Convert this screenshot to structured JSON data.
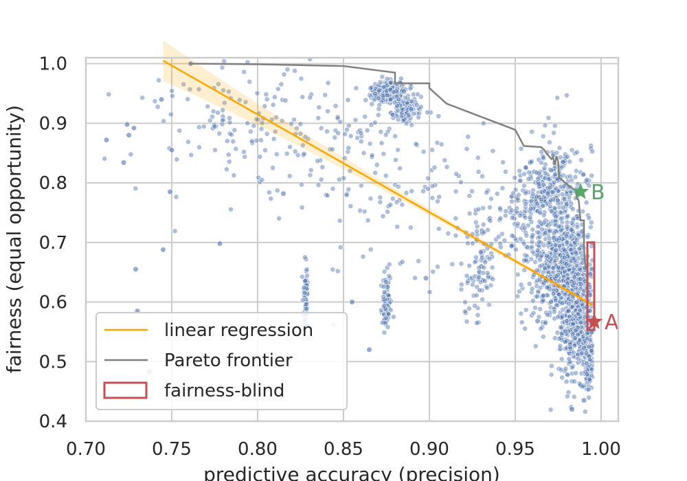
{
  "chart_data": {
    "type": "scatter",
    "title": "",
    "xlabel": "predictive accuracy (precision)",
    "ylabel": "fairness (equal opportunity)",
    "xlim": [
      0.7,
      1.01
    ],
    "ylim": [
      0.4,
      1.01
    ],
    "xticks": [
      "0.70",
      "0.75",
      "0.80",
      "0.85",
      "0.90",
      "0.95",
      "1.00"
    ],
    "yticks": [
      "0.4",
      "0.5",
      "0.6",
      "0.7",
      "0.8",
      "0.9",
      "1.0"
    ],
    "grid": true,
    "legend_position": "lower-left",
    "legend": [
      {
        "label": "linear regression",
        "kind": "line",
        "color": "#ffa500"
      },
      {
        "label": "Pareto frontier",
        "kind": "line",
        "color": "#808080"
      },
      {
        "label": "fairness-blind",
        "kind": "rect",
        "color": "#c44e52"
      }
    ],
    "colors": {
      "scatter": "#4c72b0",
      "regression": "#ffa500",
      "pareto": "#808080",
      "fairness_blind": "#c44e52",
      "point_b": "#55a868",
      "point_a": "#c44e52"
    },
    "regression_line": {
      "x": [
        0.745,
        0.995
      ],
      "y": [
        1.005,
        0.595
      ]
    },
    "pareto_frontier": {
      "x": [
        0.76,
        0.8,
        0.85,
        0.88,
        0.88,
        0.9,
        0.9,
        0.91,
        0.95,
        0.955,
        0.965,
        0.967,
        0.968,
        0.971,
        0.972,
        0.973,
        0.974,
        0.975,
        0.9755,
        0.977,
        0.979,
        0.983,
        0.985,
        0.986,
        0.987,
        0.9875,
        0.988,
        0.99,
        0.99,
        0.991
      ],
      "y": [
        1.0,
        0.999,
        0.996,
        0.985,
        0.967,
        0.967,
        0.959,
        0.933,
        0.889,
        0.862,
        0.86,
        0.855,
        0.85,
        0.84,
        0.843,
        0.83,
        0.845,
        0.835,
        0.808,
        0.806,
        0.8,
        0.791,
        0.788,
        0.775,
        0.77,
        0.752,
        0.737,
        0.737,
        0.69,
        0.655
      ]
    },
    "fairness_blind_range": {
      "x": [
        0.992,
        0.996
      ],
      "y": [
        0.553,
        0.7
      ]
    },
    "highlighted_points": [
      {
        "name": "B",
        "x": 0.988,
        "y": 0.785
      },
      {
        "name": "A",
        "x": 0.996,
        "y": 0.567
      }
    ],
    "scatter_clusters": [
      {
        "cx": 0.876,
        "cy": 0.953,
        "sx": 0.0055,
        "sy": 0.009,
        "n": 260,
        "tilt": -1.2
      },
      {
        "cx": 0.887,
        "cy": 0.925,
        "sx": 0.004,
        "sy": 0.01,
        "n": 90,
        "tilt": -1.0
      },
      {
        "cx": 0.975,
        "cy": 0.66,
        "sx": 0.008,
        "sy": 0.045,
        "n": 520,
        "tilt": -3.0
      },
      {
        "cx": 0.986,
        "cy": 0.58,
        "sx": 0.005,
        "sy": 0.05,
        "n": 460,
        "tilt": -1.5
      },
      {
        "cx": 0.97,
        "cy": 0.79,
        "sx": 0.009,
        "sy": 0.04,
        "n": 260,
        "tilt": -1.8
      },
      {
        "cx": 0.96,
        "cy": 0.74,
        "sx": 0.012,
        "sy": 0.045,
        "n": 150,
        "tilt": -2.0
      },
      {
        "cx": 0.993,
        "cy": 0.5,
        "sx": 0.003,
        "sy": 0.03,
        "n": 90,
        "tilt": 0
      },
      {
        "cx": 0.828,
        "cy": 0.61,
        "sx": 0.0008,
        "sy": 0.025,
        "n": 70,
        "tilt": 0
      },
      {
        "cx": 0.875,
        "cy": 0.6,
        "sx": 0.0015,
        "sy": 0.022,
        "n": 70,
        "tilt": 0
      },
      {
        "cx": 0.93,
        "cy": 0.66,
        "sx": 0.004,
        "sy": 0.05,
        "n": 80,
        "tilt": -2.0
      },
      {
        "cx": 0.83,
        "cy": 0.88,
        "sx": 0.045,
        "sy": 0.06,
        "n": 170,
        "tilt": 0
      },
      {
        "cx": 0.9,
        "cy": 0.76,
        "sx": 0.035,
        "sy": 0.07,
        "n": 110,
        "tilt": 0
      },
      {
        "cx": 0.78,
        "cy": 0.92,
        "sx": 0.02,
        "sy": 0.05,
        "n": 50,
        "tilt": 0
      }
    ],
    "scatter_extra_points": [
      {
        "x": 0.712,
        "y": 0.872
      },
      {
        "x": 0.722,
        "y": 0.834
      },
      {
        "x": 0.724,
        "y": 0.898
      },
      {
        "x": 0.725,
        "y": 0.88
      },
      {
        "x": 0.728,
        "y": 0.892
      },
      {
        "x": 0.729,
        "y": 0.655
      },
      {
        "x": 0.73,
        "y": 0.585
      },
      {
        "x": 0.737,
        "y": 0.483
      },
      {
        "x": 0.744,
        "y": 0.94
      },
      {
        "x": 0.745,
        "y": 0.688
      },
      {
        "x": 0.749,
        "y": 0.785
      },
      {
        "x": 0.75,
        "y": 0.855
      },
      {
        "x": 0.761,
        "y": 1.0
      },
      {
        "x": 0.778,
        "y": 0.698
      },
      {
        "x": 0.815,
        "y": 0.782
      },
      {
        "x": 0.865,
        "y": 0.52
      },
      {
        "x": 0.855,
        "y": 0.6
      },
      {
        "x": 0.898,
        "y": 0.64
      },
      {
        "x": 0.963,
        "y": 0.568
      },
      {
        "x": 0.983,
        "y": 0.42
      },
      {
        "x": 0.99,
        "y": 0.435
      }
    ]
  }
}
